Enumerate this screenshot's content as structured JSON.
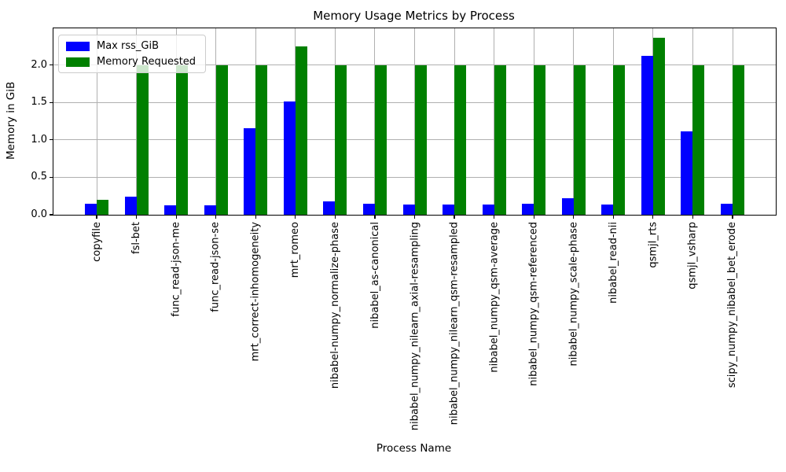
{
  "chart_data": {
    "type": "bar",
    "title": "Memory Usage Metrics by Process",
    "xlabel": "Process Name",
    "ylabel": "Memory in GiB",
    "categories": [
      "copyfile",
      "fsl-bet",
      "func_read-json-me",
      "func_read-json-se",
      "mrt_correct-inhomogeneity",
      "mrt_romeo",
      "nibabel-numpy_normalize-phase",
      "nibabel_as-canonical",
      "nibabel_numpy_nilearn_axial-resampling",
      "nibabel_numpy_nilearn_qsm-resampled",
      "nibabel_numpy_qsm-average",
      "nibabel_numpy_qsm-referenced",
      "nibabel_numpy_scale-phase",
      "nibabel_read-nii",
      "qsmjl_rts",
      "qsmjl_vsharp",
      "scipy_numpy_nibabel_bet_erode"
    ],
    "series": [
      {
        "name": "Max rss_GiB",
        "color": "#0000ff",
        "values": [
          0.15,
          0.24,
          0.13,
          0.13,
          1.16,
          1.51,
          0.18,
          0.15,
          0.14,
          0.14,
          0.14,
          0.15,
          0.22,
          0.14,
          2.12,
          1.11,
          0.15
        ]
      },
      {
        "name": "Memory Requested",
        "color": "#008000",
        "values": [
          0.2,
          2.0,
          2.0,
          2.0,
          2.0,
          2.25,
          2.0,
          2.0,
          2.0,
          2.0,
          2.0,
          2.0,
          2.0,
          2.0,
          2.36,
          2.0,
          2.0
        ]
      }
    ],
    "yticks": [
      0.0,
      0.5,
      1.0,
      1.5,
      2.0
    ],
    "ylim": [
      0,
      2.49
    ],
    "grid": true,
    "legend_position": "upper left",
    "colors": {
      "grid": "#b0b0b0",
      "frame": "#000000",
      "background": "#ffffff"
    }
  }
}
